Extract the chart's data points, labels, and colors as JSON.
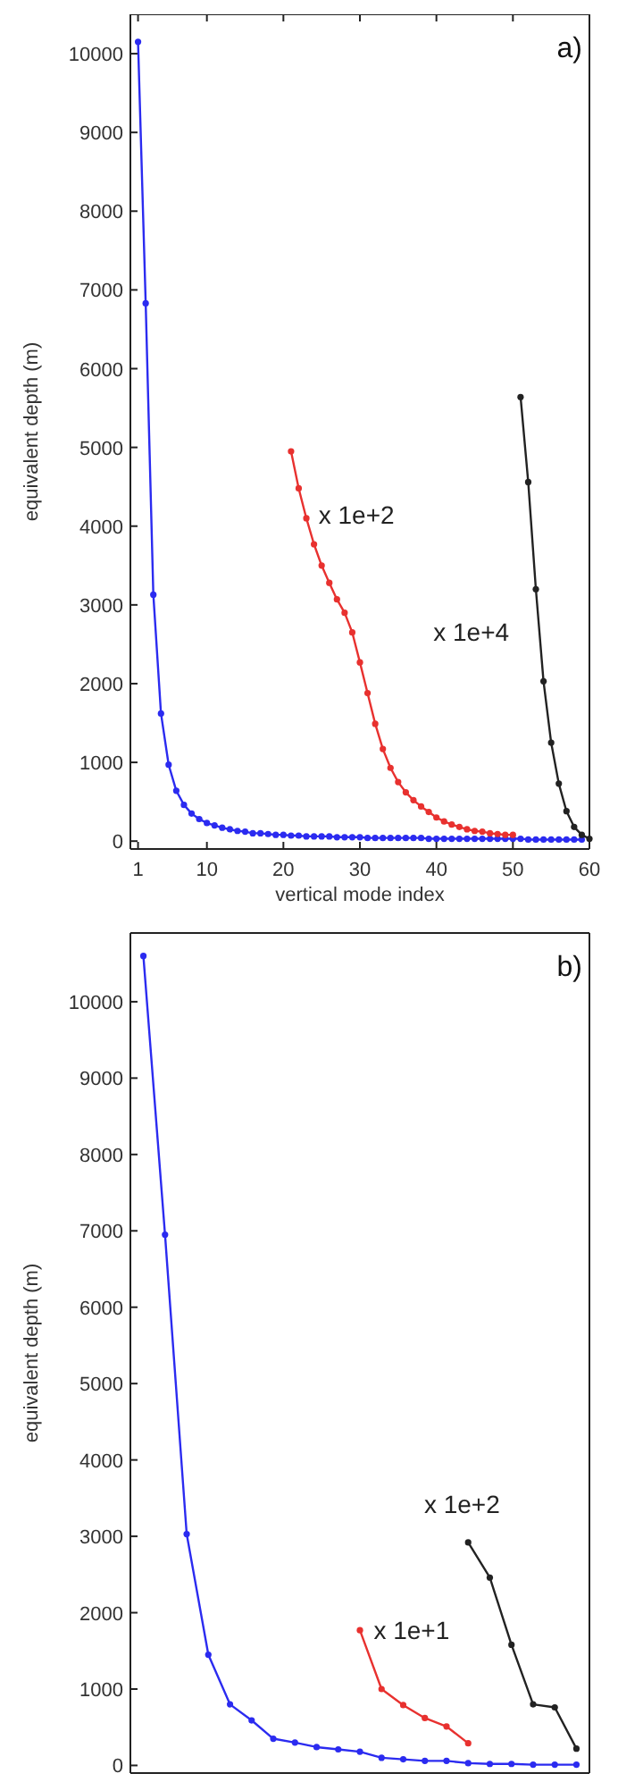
{
  "chart_data": [
    {
      "type": "line",
      "xlabel": "vertical mode index",
      "ylabel": "equivalent depth (m)",
      "xlim": [
        0,
        60
      ],
      "ylim": [
        -100,
        10500
      ],
      "xticks": [
        1,
        10,
        20,
        30,
        40,
        50,
        60
      ],
      "yticks": [
        0,
        1000,
        2000,
        3000,
        4000,
        5000,
        6000,
        7000,
        8000,
        9000,
        10000
      ],
      "marker": "circle",
      "grid": false,
      "annotations": [
        "a)",
        "x 1e+2",
        "x 1e+4"
      ],
      "series": [
        {
          "color": "#2b2bf0",
          "x": [
            1,
            2,
            3,
            4,
            5,
            6,
            7,
            8,
            9,
            10,
            11,
            12,
            13,
            14,
            15,
            16,
            17,
            18,
            19,
            20,
            21,
            22,
            23,
            24,
            25,
            26,
            27,
            28,
            29,
            30,
            31,
            32,
            33,
            34,
            35,
            36,
            37,
            38,
            39,
            40,
            41,
            42,
            43,
            44,
            45,
            46,
            47,
            48,
            49,
            50,
            51,
            52,
            53,
            54,
            55,
            56,
            57,
            58,
            59
          ],
          "values": [
            10150,
            6830,
            3130,
            1620,
            970,
            640,
            460,
            350,
            280,
            230,
            200,
            170,
            150,
            130,
            120,
            100,
            100,
            90,
            80,
            80,
            70,
            70,
            60,
            60,
            60,
            60,
            50,
            50,
            50,
            50,
            40,
            40,
            40,
            40,
            40,
            40,
            40,
            40,
            30,
            30,
            30,
            30,
            30,
            30,
            30,
            30,
            30,
            30,
            30,
            30,
            30,
            20,
            20,
            20,
            20,
            20,
            20,
            20,
            20
          ]
        },
        {
          "color": "#e8312f",
          "x": [
            21,
            22,
            23,
            24,
            25,
            26,
            27,
            28,
            29,
            30,
            31,
            32,
            33,
            34,
            35,
            36,
            37,
            38,
            39,
            40,
            41,
            42,
            43,
            44,
            45,
            46,
            47,
            48,
            49,
            50
          ],
          "values": [
            4950,
            4480,
            4100,
            3770,
            3500,
            3280,
            3070,
            2900,
            2650,
            2270,
            1880,
            1490,
            1170,
            930,
            750,
            620,
            520,
            440,
            370,
            300,
            250,
            210,
            180,
            150,
            130,
            120,
            100,
            90,
            80,
            80
          ]
        },
        {
          "color": "#222222",
          "x": [
            51,
            52,
            53,
            54,
            55,
            56,
            57,
            58,
            59,
            60
          ],
          "values": [
            5640,
            4560,
            3200,
            2030,
            1250,
            730,
            380,
            180,
            80,
            30
          ]
        }
      ]
    },
    {
      "type": "line",
      "ylabel": "equivalent depth (m)",
      "categories": [
        null,
        null,
        null,
        null,
        null,
        null,
        null,
        null,
        null,
        null,
        null,
        null,
        null,
        null,
        null,
        null,
        null,
        null,
        null,
        null,
        null
      ],
      "ylim": [
        -100,
        10900
      ],
      "yticks": [
        0,
        1000,
        2000,
        3000,
        4000,
        5000,
        6000,
        7000,
        8000,
        9000,
        10000
      ],
      "marker": "circle",
      "grid": false,
      "annotations": [
        "b)",
        "x 1e+1",
        "x 1e+2"
      ],
      "series": [
        {
          "color": "#2b2bf0",
          "values": [
            10600,
            6950,
            3030,
            1450,
            800,
            590,
            350,
            300,
            240,
            210,
            180,
            100,
            80,
            60,
            60,
            30,
            20,
            20,
            10,
            10,
            10
          ]
        },
        {
          "color": "#e8312f",
          "values": [
            null,
            null,
            null,
            null,
            null,
            null,
            null,
            null,
            null,
            null,
            1770,
            1000,
            790,
            620,
            510,
            290,
            null,
            null,
            null,
            null,
            null
          ]
        },
        {
          "color": "#222222",
          "values": [
            null,
            null,
            null,
            null,
            null,
            null,
            null,
            null,
            null,
            null,
            null,
            null,
            null,
            null,
            null,
            2920,
            2460,
            1580,
            800,
            760,
            220
          ]
        }
      ]
    }
  ]
}
